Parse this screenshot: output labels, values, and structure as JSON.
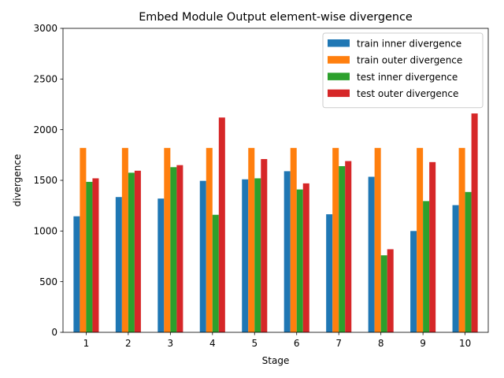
{
  "chart_data": {
    "type": "bar",
    "title": "Embed Module Output element-wise divergence",
    "xlabel": "Stage",
    "ylabel": "divergence",
    "ylim": [
      0,
      3000
    ],
    "yticks": [
      0,
      500,
      1000,
      1500,
      2000,
      2500,
      3000
    ],
    "categories": [
      "1",
      "2",
      "3",
      "4",
      "5",
      "6",
      "7",
      "8",
      "9",
      "10"
    ],
    "legend_position": "top-right",
    "grid": false,
    "series": [
      {
        "name": "train inner divergence",
        "color": "#1f77b4",
        "values": [
          1145,
          1335,
          1320,
          1495,
          1510,
          1590,
          1165,
          1535,
          1000,
          1255
        ]
      },
      {
        "name": "train outer divergence",
        "color": "#ff7f0e",
        "values": [
          1820,
          1820,
          1820,
          1820,
          1820,
          1820,
          1820,
          1820,
          1820,
          1820
        ]
      },
      {
        "name": "test inner divergence",
        "color": "#2ca02c",
        "values": [
          1485,
          1575,
          1630,
          1160,
          1520,
          1410,
          1640,
          760,
          1295,
          1385
        ]
      },
      {
        "name": "test outer divergence",
        "color": "#d62728",
        "values": [
          1520,
          1595,
          1650,
          2120,
          1710,
          1470,
          1690,
          820,
          1680,
          2160
        ]
      }
    ]
  }
}
